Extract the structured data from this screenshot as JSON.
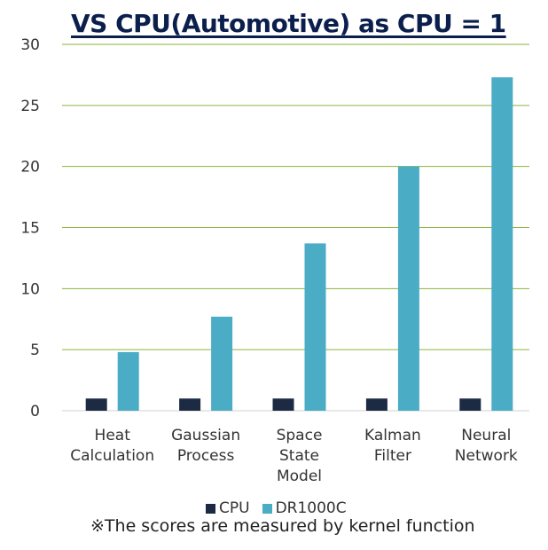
{
  "chart_data": {
    "type": "bar",
    "title": "VS CPU(Automotive) as CPU = 1",
    "categories": [
      [
        "Heat",
        "Calculation"
      ],
      [
        "Gaussian",
        "Process"
      ],
      [
        "Space",
        "State",
        "Model"
      ],
      [
        "Kalman",
        "Filter"
      ],
      [
        "Neural",
        "Network"
      ]
    ],
    "series": [
      {
        "name": "CPU",
        "color": "#1c2a44",
        "values": [
          1,
          1,
          1,
          1,
          1
        ]
      },
      {
        "name": "DR1000C",
        "color": "#4bacc6",
        "values": [
          4.8,
          7.7,
          13.7,
          20.0,
          27.3
        ]
      }
    ],
    "ylim": [
      0,
      30
    ],
    "yticks": [
      "0",
      "5",
      "10",
      "15",
      "20",
      "25",
      "30"
    ],
    "grid": true,
    "grid_color": "#8db33a",
    "legend": "bottom"
  },
  "footnote": "※The scores are measured by kernel function"
}
